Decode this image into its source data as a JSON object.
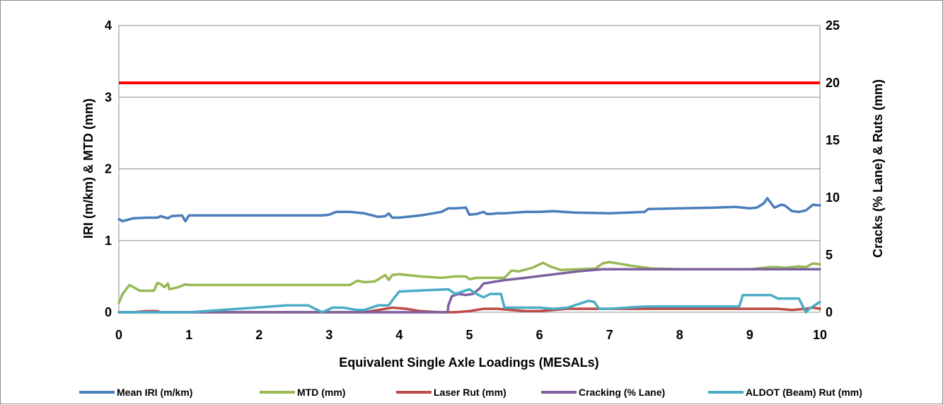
{
  "chart_data": {
    "type": "line",
    "xlabel": "Equivalent Single Axle Loadings (MESALs)",
    "ylabel_left": "IRI (m/km) & MTD (mm)",
    "ylabel_right": "Cracks (% Lane) & Ruts (mm)",
    "xlim": [
      0,
      10
    ],
    "ylim_left": [
      0,
      4
    ],
    "ylim_right": [
      0,
      25
    ],
    "x_ticks": [
      "0",
      "1",
      "2",
      "3",
      "4",
      "5",
      "6",
      "7",
      "8",
      "9",
      "10"
    ],
    "y_left_ticks": [
      "0",
      "1",
      "2",
      "3",
      "4"
    ],
    "y_right_ticks": [
      "0",
      "5",
      "10",
      "15",
      "20",
      "25"
    ],
    "grid": "horizontal",
    "legend_position": "bottom",
    "threshold_line": {
      "axis": "right",
      "value": 20,
      "color": "#ff0000"
    },
    "series": [
      {
        "name": "Mean IRI (m/km)",
        "axis": "left",
        "color": "#4a7ebb",
        "x": [
          0,
          0.05,
          0.2,
          0.4,
          0.55,
          0.6,
          0.7,
          0.75,
          0.9,
          0.95,
          1.0,
          1.5,
          2.0,
          2.5,
          2.9,
          3.0,
          3.1,
          3.3,
          3.5,
          3.7,
          3.8,
          3.85,
          3.9,
          4.0,
          4.3,
          4.6,
          4.7,
          4.8,
          4.95,
          5.0,
          5.1,
          5.2,
          5.25,
          5.3,
          5.4,
          5.5,
          5.8,
          6.0,
          6.2,
          6.5,
          7.0,
          7.5,
          7.55,
          8.0,
          8.5,
          8.8,
          8.9,
          9.0,
          9.1,
          9.2,
          9.25,
          9.35,
          9.45,
          9.5,
          9.6,
          9.7,
          9.8,
          9.9,
          10.0
        ],
        "y": [
          1.3,
          1.27,
          1.31,
          1.32,
          1.32,
          1.34,
          1.31,
          1.34,
          1.35,
          1.27,
          1.35,
          1.35,
          1.35,
          1.35,
          1.35,
          1.36,
          1.4,
          1.4,
          1.38,
          1.33,
          1.34,
          1.38,
          1.32,
          1.32,
          1.35,
          1.4,
          1.45,
          1.45,
          1.46,
          1.36,
          1.37,
          1.4,
          1.37,
          1.37,
          1.38,
          1.38,
          1.4,
          1.4,
          1.41,
          1.39,
          1.38,
          1.4,
          1.44,
          1.45,
          1.46,
          1.47,
          1.46,
          1.45,
          1.46,
          1.52,
          1.59,
          1.46,
          1.5,
          1.49,
          1.41,
          1.4,
          1.42,
          1.5,
          1.49
        ]
      },
      {
        "name": "MTD (mm)",
        "axis": "left",
        "color": "#98b954",
        "x": [
          0,
          0.05,
          0.15,
          0.3,
          0.5,
          0.55,
          0.6,
          0.65,
          0.7,
          0.72,
          0.85,
          0.95,
          1.0,
          1.5,
          2.0,
          2.5,
          3.0,
          3.3,
          3.4,
          3.5,
          3.65,
          3.8,
          3.85,
          3.9,
          4.0,
          4.3,
          4.6,
          4.8,
          4.95,
          5.0,
          5.1,
          5.5,
          5.6,
          5.7,
          5.9,
          6.05,
          6.15,
          6.3,
          6.8,
          6.9,
          7.0,
          7.3,
          7.6,
          8.0,
          8.5,
          9.0,
          9.2,
          9.3,
          9.4,
          9.5,
          9.7,
          9.8,
          9.9,
          10.0
        ],
        "y": [
          0.13,
          0.25,
          0.38,
          0.3,
          0.3,
          0.41,
          0.39,
          0.35,
          0.4,
          0.32,
          0.35,
          0.39,
          0.38,
          0.38,
          0.38,
          0.38,
          0.38,
          0.38,
          0.44,
          0.42,
          0.43,
          0.52,
          0.45,
          0.52,
          0.53,
          0.5,
          0.48,
          0.5,
          0.5,
          0.46,
          0.48,
          0.48,
          0.58,
          0.57,
          0.62,
          0.69,
          0.64,
          0.59,
          0.61,
          0.68,
          0.7,
          0.65,
          0.61,
          0.6,
          0.6,
          0.6,
          0.62,
          0.63,
          0.63,
          0.62,
          0.64,
          0.63,
          0.68,
          0.67
        ]
      },
      {
        "name": "Laser Rut (mm)",
        "axis": "right",
        "color": "#be4b48",
        "x": [
          0,
          0.2,
          0.4,
          0.55,
          0.6,
          1.0,
          2.0,
          3.0,
          3.5,
          3.7,
          3.9,
          4.1,
          4.3,
          4.6,
          4.8,
          5.0,
          5.2,
          5.4,
          5.6,
          5.8,
          6.0,
          6.2,
          6.4,
          6.6,
          6.8,
          7.0,
          7.5,
          8.0,
          8.5,
          9.0,
          9.2,
          9.4,
          9.6,
          9.8,
          9.9,
          10.0
        ],
        "y": [
          0,
          0,
          0.1,
          0.1,
          0,
          0,
          0,
          0,
          0,
          0.2,
          0.4,
          0.3,
          0.1,
          0,
          0,
          0.1,
          0.3,
          0.3,
          0.2,
          0.1,
          0.1,
          0.2,
          0.3,
          0.3,
          0.3,
          0.3,
          0.3,
          0.3,
          0.3,
          0.3,
          0.3,
          0.3,
          0.2,
          0.3,
          0.4,
          0.3
        ]
      },
      {
        "name": "Cracking (% Lane)",
        "axis": "right",
        "color": "#7d60a0",
        "x": [
          0,
          1,
          2,
          3,
          4,
          4.69,
          4.7,
          4.75,
          4.85,
          4.95,
          5.05,
          5.15,
          5.2,
          5.3,
          5.5,
          5.8,
          6.2,
          6.6,
          6.9,
          7.0,
          8.0,
          9.0,
          10.0
        ],
        "y": [
          0,
          0,
          0,
          0,
          0,
          0,
          0.6,
          1.4,
          1.6,
          1.5,
          1.6,
          2.1,
          2.5,
          2.6,
          2.8,
          3.0,
          3.3,
          3.6,
          3.75,
          3.75,
          3.75,
          3.75,
          3.75
        ]
      },
      {
        "name": "ALDOT (Beam) Rut (mm)",
        "axis": "right",
        "color": "#4bacc6",
        "x": [
          0,
          1,
          1.7,
          2.4,
          2.7,
          2.9,
          3.05,
          3.2,
          3.4,
          3.5,
          3.7,
          3.85,
          3.92,
          4.0,
          4.3,
          4.7,
          4.8,
          4.9,
          5.0,
          5.1,
          5.2,
          5.3,
          5.45,
          5.5,
          6.0,
          6.2,
          6.4,
          6.7,
          6.78,
          6.85,
          7.0,
          7.5,
          8.0,
          8.5,
          8.85,
          8.9,
          9.3,
          9.4,
          9.5,
          9.7,
          9.75,
          9.8,
          9.85,
          10.0
        ],
        "y": [
          0,
          0,
          0.3,
          0.6,
          0.6,
          0,
          0.4,
          0.4,
          0.2,
          0.2,
          0.6,
          0.6,
          1.2,
          1.8,
          1.9,
          2.0,
          1.6,
          1.8,
          2.0,
          1.6,
          1.3,
          1.6,
          1.6,
          0.4,
          0.4,
          0.3,
          0.4,
          1.0,
          0.9,
          0.3,
          0.3,
          0.5,
          0.5,
          0.5,
          0.5,
          1.5,
          1.5,
          1.2,
          1.2,
          1.2,
          0.6,
          0,
          0.3,
          0.9
        ]
      }
    ]
  }
}
